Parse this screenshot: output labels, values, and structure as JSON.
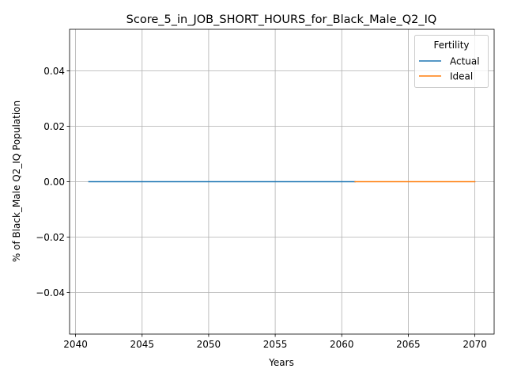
{
  "chart_data": {
    "type": "line",
    "title": "Score_5_in_JOB_SHORT_HOURS_for_Black_Male_Q2_IQ",
    "xlabel": "Years",
    "ylabel": "% of Black_Male Q2_IQ Population",
    "xlim": [
      2039.55,
      2071.45
    ],
    "ylim": [
      -0.055,
      0.055
    ],
    "x_ticks": [
      2040,
      2045,
      2050,
      2055,
      2060,
      2065,
      2070
    ],
    "x_tick_labels": [
      "2040",
      "2045",
      "2050",
      "2055",
      "2060",
      "2065",
      "2070"
    ],
    "y_ticks": [
      -0.04,
      -0.02,
      0.0,
      0.02,
      0.04
    ],
    "y_tick_labels": [
      "−0.04",
      "−0.02",
      "0.00",
      "0.02",
      "0.04"
    ],
    "grid": true,
    "legend": {
      "title": "Fertility",
      "position": "upper right"
    },
    "series": [
      {
        "name": "Actual",
        "color": "#1f77b4",
        "x": [
          2041,
          2061
        ],
        "y": [
          0.0,
          0.0
        ]
      },
      {
        "name": "Ideal",
        "color": "#ff7f0e",
        "x": [
          2061,
          2070
        ],
        "y": [
          0.0,
          0.0
        ]
      }
    ]
  }
}
